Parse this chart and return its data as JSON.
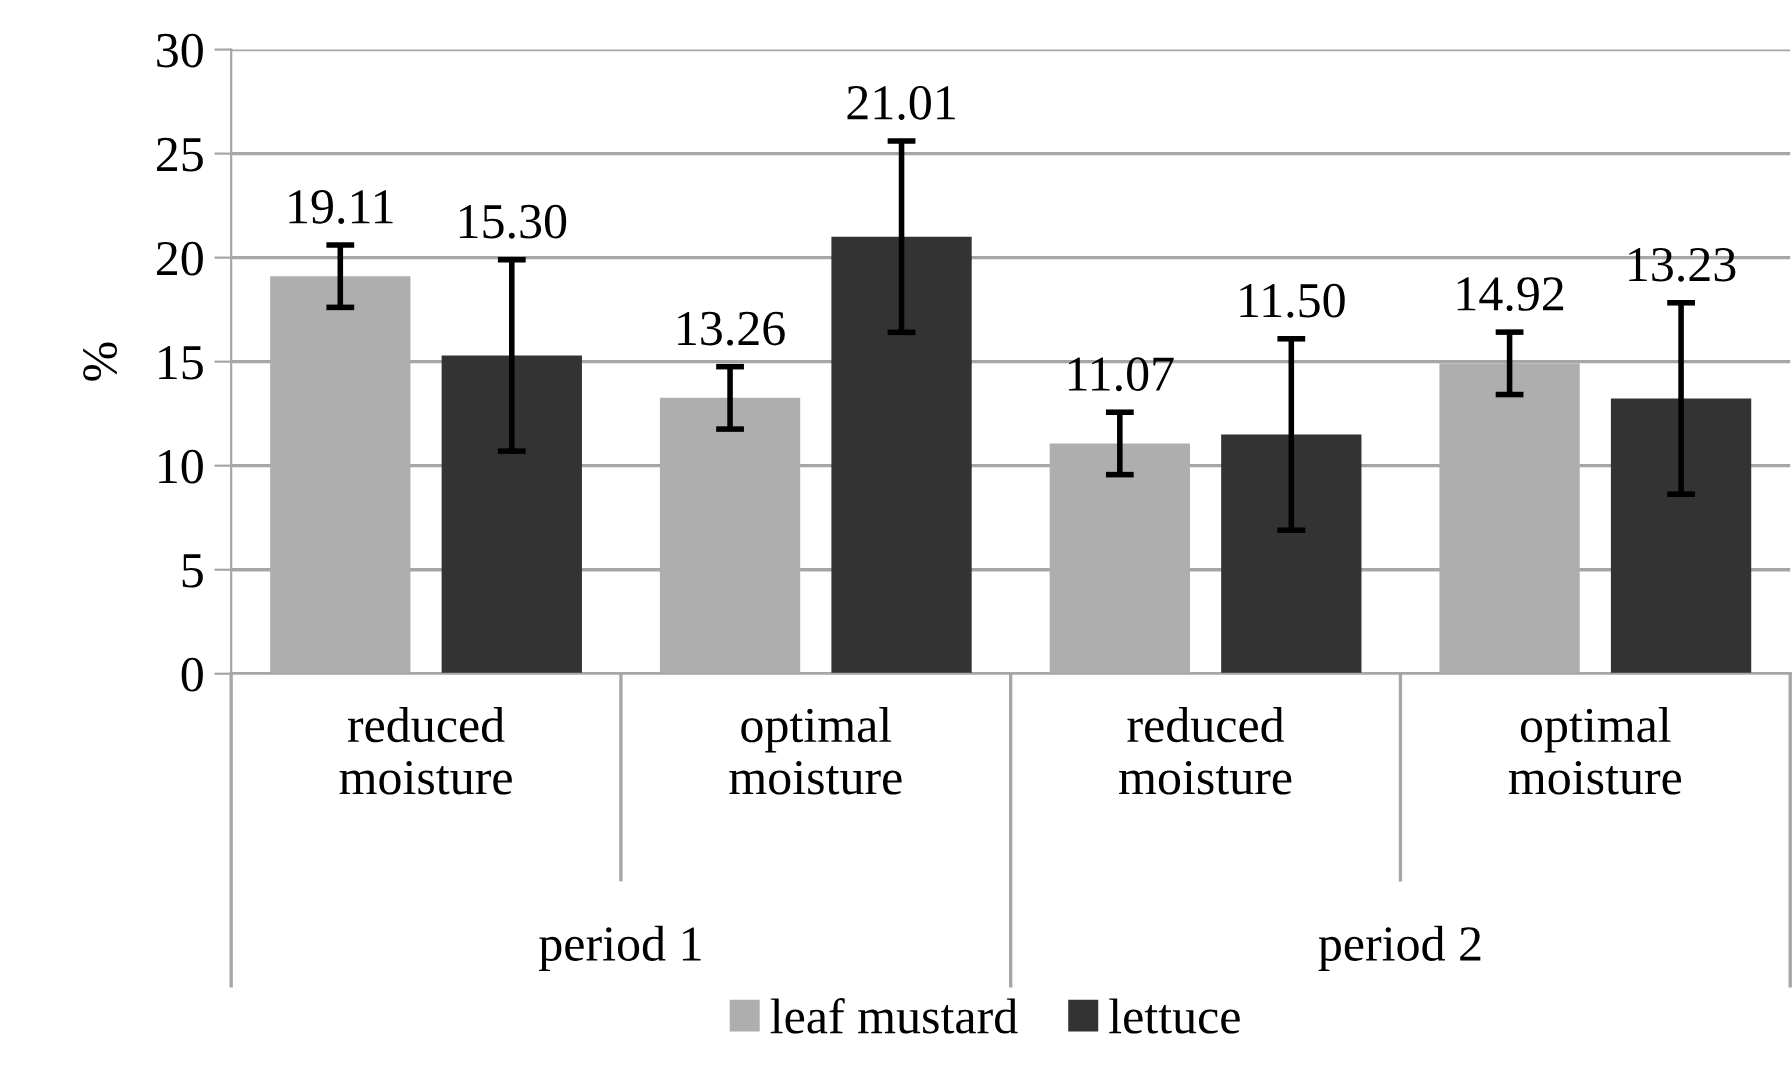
{
  "chart_data": {
    "type": "bar",
    "ylabel": "%",
    "categories": [
      "reduced\nmoisture",
      "optimal\nmoisture",
      "reduced\nmoisture",
      "optimal\nmoisture"
    ],
    "series": [
      {
        "name": "leaf mustard",
        "color": "#aeaeae",
        "values": [
          19.11,
          13.26,
          11.07,
          14.92
        ],
        "value_labels": [
          "19.11",
          "13.26",
          "11.07",
          "14.92"
        ],
        "errors": [
          1.5,
          1.5,
          1.5,
          1.5
        ]
      },
      {
        "name": "lettuce",
        "color": "#333333",
        "values": [
          15.3,
          21.01,
          11.5,
          13.23
        ],
        "value_labels": [
          "15.30",
          "21.01",
          "11.50",
          "13.23"
        ],
        "errors": [
          4.6,
          4.6,
          4.6,
          4.6
        ]
      }
    ],
    "annotations": [
      "period 1",
      "period 2"
    ],
    "ylim": [
      0,
      30
    ],
    "yticks": [
      0,
      5,
      10,
      15,
      20,
      25,
      30
    ],
    "grid": "y",
    "legend": "bottom"
  }
}
